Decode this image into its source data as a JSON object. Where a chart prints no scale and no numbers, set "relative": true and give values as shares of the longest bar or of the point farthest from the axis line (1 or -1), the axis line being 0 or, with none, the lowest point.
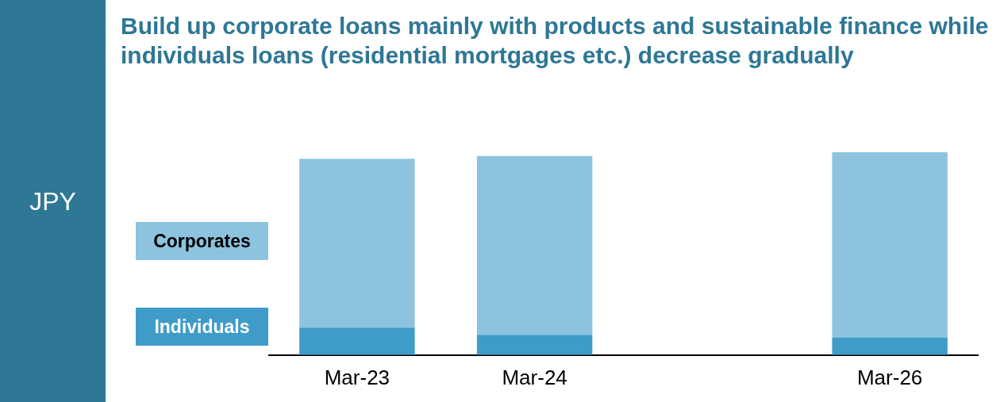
{
  "chart_data": {
    "type": "bar",
    "title": "Build up corporate loans mainly with products and sustainable finance while individuals loans (residential mortgages etc.) decrease gradually",
    "annotations": [
      "JPY"
    ],
    "categories": [
      "Mar-23",
      "Mar-24",
      null,
      "Mar-26"
    ],
    "series": [
      {
        "name": "Individuals",
        "color": "#3f9cc9",
        "values": [
          0.135,
          0.1,
          null,
          0.087
        ]
      },
      {
        "name": "Corporates",
        "color": "#8dc3de",
        "values": [
          0.833,
          0.881,
          null,
          0.913
        ]
      }
    ],
    "stacked": true,
    "relative": true,
    "legend": "left"
  }
}
